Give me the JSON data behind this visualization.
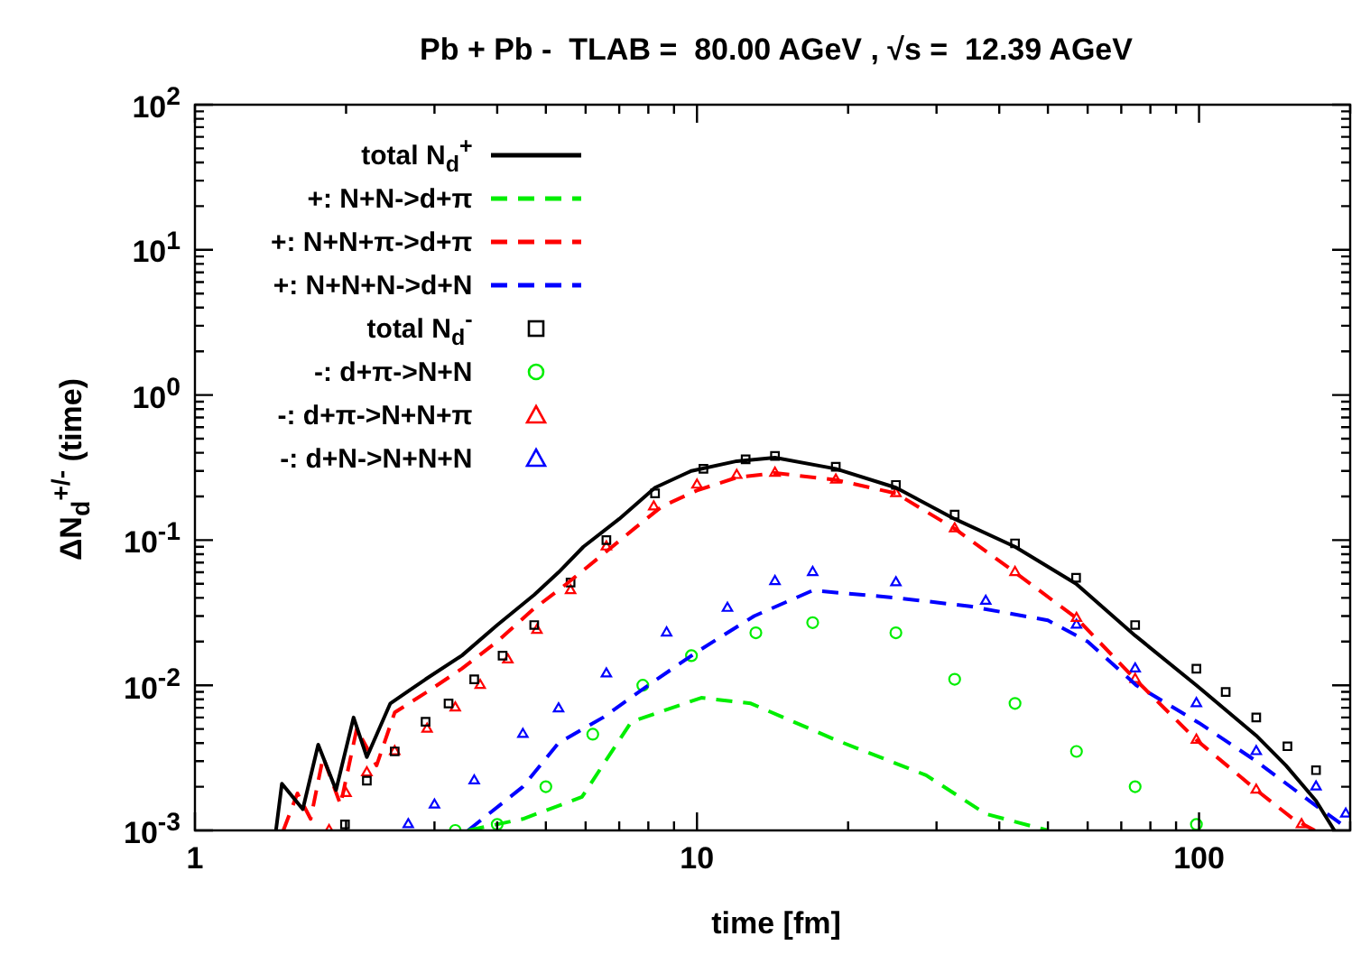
{
  "chart_data": {
    "type": "line",
    "title": "Pb + Pb -  TLAB =  80.00 AGeV , √s =  12.39 AGeV",
    "xlabel": "time [fm]",
    "ylabel": "ΔN$_{d}$$^{+/-}$ (time)",
    "log": "xy",
    "grid": false,
    "legend": "top left",
    "xlim": [
      1,
      200
    ],
    "xticks": [
      1,
      {
        "value": 2,
        "label": null
      },
      {
        "value": 3,
        "label": null
      },
      {
        "value": 4,
        "label": null
      },
      {
        "value": 5,
        "label": null
      },
      {
        "value": 6,
        "label": null
      },
      {
        "value": 7,
        "label": null
      },
      {
        "value": 8,
        "label": null
      },
      {
        "value": 9,
        "label": null
      },
      10,
      {
        "value": 20,
        "label": null
      },
      {
        "value": 30,
        "label": null
      },
      {
        "value": 40,
        "label": null
      },
      {
        "value": 50,
        "label": null
      },
      {
        "value": 60,
        "label": null
      },
      {
        "value": 70,
        "label": null
      },
      {
        "value": 80,
        "label": null
      },
      {
        "value": 90,
        "label": null
      },
      100,
      {
        "value": 200,
        "label": null
      }
    ],
    "ylim": [
      0.001,
      100
    ],
    "yticks": [
      {
        "value": 0.001,
        "label": "10$^{-3}$"
      },
      {
        "value": 0.002,
        "label": null
      },
      {
        "value": 0.003,
        "label": null
      },
      {
        "value": 0.004,
        "label": null
      },
      {
        "value": 0.005,
        "label": null
      },
      {
        "value": 0.006,
        "label": null
      },
      {
        "value": 0.007,
        "label": null
      },
      {
        "value": 0.008,
        "label": null
      },
      {
        "value": 0.009,
        "label": null
      },
      {
        "value": 0.01,
        "label": "10$^{-2}$"
      },
      {
        "value": 0.02,
        "label": null
      },
      {
        "value": 0.03,
        "label": null
      },
      {
        "value": 0.04,
        "label": null
      },
      {
        "value": 0.05,
        "label": null
      },
      {
        "value": 0.06,
        "label": null
      },
      {
        "value": 0.07,
        "label": null
      },
      {
        "value": 0.08,
        "label": null
      },
      {
        "value": 0.09,
        "label": null
      },
      {
        "value": 0.1,
        "label": "10$^{-1}$"
      },
      {
        "value": 0.2,
        "label": null
      },
      {
        "value": 0.3,
        "label": null
      },
      {
        "value": 0.4,
        "label": null
      },
      {
        "value": 0.5,
        "label": null
      },
      {
        "value": 0.6,
        "label": null
      },
      {
        "value": 0.7,
        "label": null
      },
      {
        "value": 0.8,
        "label": null
      },
      {
        "value": 0.9,
        "label": null
      },
      {
        "value": 1,
        "label": "10$^{0}$"
      },
      {
        "value": 2,
        "label": null
      },
      {
        "value": 3,
        "label": null
      },
      {
        "value": 4,
        "label": null
      },
      {
        "value": 5,
        "label": null
      },
      {
        "value": 6,
        "label": null
      },
      {
        "value": 7,
        "label": null
      },
      {
        "value": 8,
        "label": null
      },
      {
        "value": 9,
        "label": null
      },
      {
        "value": 10,
        "label": "10$^{1}$"
      },
      {
        "value": 20,
        "label": null
      },
      {
        "value": 30,
        "label": null
      },
      {
        "value": 40,
        "label": null
      },
      {
        "value": 50,
        "label": null
      },
      {
        "value": 60,
        "label": null
      },
      {
        "value": 70,
        "label": null
      },
      {
        "value": 80,
        "label": null
      },
      {
        "value": 90,
        "label": null
      },
      {
        "value": 100,
        "label": "10$^{2}$"
      }
    ],
    "series": [
      {
        "name": "total N$_{d}$$^{+}$",
        "type": "line",
        "line_style": "solid",
        "color": "#000000",
        "x": [
          1.45,
          1.49,
          1.64,
          1.76,
          1.91,
          2.07,
          2.2,
          2.45,
          2.88,
          3.4,
          4.0,
          4.74,
          5.3,
          5.94,
          7.0,
          8.25,
          9.75,
          12,
          14.3,
          18.9,
          24.9,
          32.6,
          43,
          56.9,
          74.6,
          98.8,
          130,
          149,
          171,
          186
        ],
        "values": [
          0.001,
          0.0021,
          0.0014,
          0.0039,
          0.0019,
          0.006,
          0.0032,
          0.0075,
          0.011,
          0.016,
          0.026,
          0.042,
          0.06,
          0.09,
          0.14,
          0.23,
          0.3,
          0.35,
          0.37,
          0.31,
          0.23,
          0.14,
          0.09,
          0.05,
          0.022,
          0.01,
          0.0045,
          0.0028,
          0.0016,
          0.001
        ]
      },
      {
        "name": "+: N+N->d+π",
        "type": "line",
        "line_style": "dashed",
        "color": "#00ee00",
        "x": [
          3.5,
          4.5,
          5.9,
          7.4,
          10.2,
          12.8,
          18.9,
          28.6,
          37.6,
          50
        ],
        "values": [
          0.001,
          0.0012,
          0.0017,
          0.0056,
          0.0082,
          0.0075,
          0.0042,
          0.0024,
          0.0013,
          0.001
        ]
      },
      {
        "name": "+: N+N+π->d+π",
        "type": "line",
        "line_style": "dashed",
        "color": "#ff0000",
        "x": [
          1.5,
          1.6,
          1.7,
          1.8,
          1.95,
          2.1,
          2.3,
          2.5,
          2.9,
          3.4,
          4.0,
          4.7,
          5.5,
          6.5,
          7.5,
          8.5,
          10,
          12,
          14.3,
          18.9,
          24.9,
          32.6,
          43,
          57,
          74.6,
          98.8,
          130,
          154,
          170
        ],
        "values": [
          0.001,
          0.0018,
          0.0012,
          0.0032,
          0.0015,
          0.005,
          0.0028,
          0.0065,
          0.009,
          0.013,
          0.02,
          0.033,
          0.05,
          0.08,
          0.12,
          0.17,
          0.22,
          0.27,
          0.29,
          0.26,
          0.21,
          0.12,
          0.06,
          0.029,
          0.011,
          0.0042,
          0.0019,
          0.0012,
          0.001
        ]
      },
      {
        "name": "+: N+N+N->d+N",
        "type": "line",
        "line_style": "dashed",
        "color": "#0000ff",
        "x": [
          3.5,
          4.5,
          5.3,
          6.5,
          8,
          10,
          13,
          17,
          25,
          35,
          50,
          60,
          75,
          100,
          130,
          170,
          200
        ],
        "values": [
          0.001,
          0.002,
          0.004,
          0.006,
          0.01,
          0.017,
          0.03,
          0.045,
          0.04,
          0.035,
          0.028,
          0.02,
          0.01,
          0.0055,
          0.003,
          0.0015,
          0.001
        ]
      },
      {
        "name": "total N$_{d}$$^{-}$",
        "type": "scatter",
        "marker": "square",
        "color": "#000000",
        "x": [
          1.99,
          2.2,
          2.5,
          2.88,
          3.2,
          3.6,
          4.1,
          4.74,
          5.6,
          6.6,
          8.25,
          10.3,
          12.5,
          14.3,
          18.9,
          24.9,
          32.6,
          43,
          56.9,
          74.6,
          98.8,
          113,
          130,
          150,
          171
        ],
        "values": [
          0.0011,
          0.0022,
          0.0035,
          0.0056,
          0.0075,
          0.011,
          0.016,
          0.026,
          0.051,
          0.1,
          0.21,
          0.31,
          0.36,
          0.38,
          0.32,
          0.24,
          0.15,
          0.095,
          0.055,
          0.026,
          0.013,
          0.009,
          0.006,
          0.0038,
          0.0026
        ]
      },
      {
        "name": "-: d+π->N+N",
        "type": "scatter",
        "marker": "circle",
        "color": "#00ee00",
        "x": [
          3.3,
          4.0,
          5.0,
          6.2,
          7.8,
          9.75,
          13.1,
          17,
          24.9,
          32.6,
          43,
          57,
          74.6,
          98.8
        ],
        "values": [
          0.001,
          0.0011,
          0.002,
          0.0046,
          0.01,
          0.016,
          0.023,
          0.027,
          0.023,
          0.011,
          0.0075,
          0.0035,
          0.002,
          0.0011
        ]
      },
      {
        "name": "-: d+π->N+N+π",
        "type": "scatter",
        "marker": "triangle",
        "color": "#ff0000",
        "x": [
          1.85,
          2.0,
          2.2,
          2.5,
          2.9,
          3.3,
          3.7,
          4.2,
          4.8,
          5.6,
          6.6,
          8.2,
          10,
          12,
          14.3,
          18.9,
          24.9,
          32.6,
          43,
          57,
          74.6,
          98.8,
          130,
          160
        ],
        "values": [
          0.001,
          0.0018,
          0.0025,
          0.0035,
          0.005,
          0.007,
          0.01,
          0.015,
          0.024,
          0.045,
          0.09,
          0.17,
          0.24,
          0.28,
          0.29,
          0.26,
          0.21,
          0.12,
          0.06,
          0.029,
          0.011,
          0.0042,
          0.0019,
          0.0011
        ]
      },
      {
        "name": "-: d+N->N+N+N",
        "type": "scatter",
        "marker": "triangle",
        "color": "#0000ff",
        "x": [
          2.66,
          3.0,
          3.6,
          4.5,
          5.3,
          6.6,
          8.7,
          11.5,
          14.3,
          17,
          24.9,
          37.6,
          57,
          74.6,
          98.8,
          130,
          171,
          196
        ],
        "values": [
          0.0011,
          0.0015,
          0.0022,
          0.0046,
          0.0069,
          0.012,
          0.023,
          0.034,
          0.052,
          0.06,
          0.051,
          0.038,
          0.026,
          0.013,
          0.0075,
          0.0035,
          0.002,
          0.0013
        ]
      }
    ]
  }
}
